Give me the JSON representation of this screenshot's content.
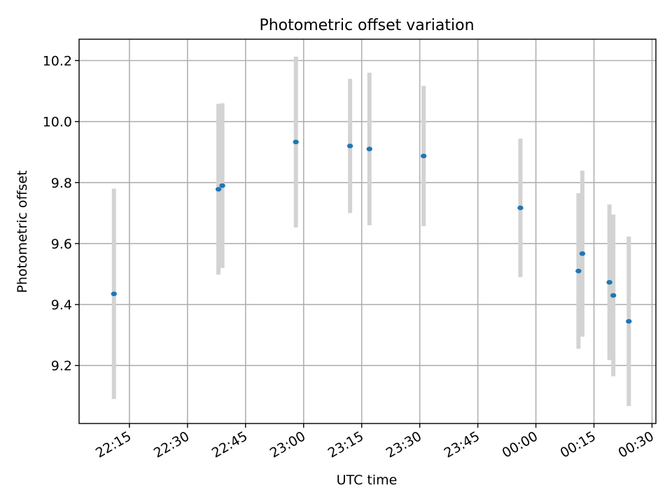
{
  "chart_data": {
    "type": "scatter",
    "title": "Photometric offset variation",
    "xlabel": "UTC time",
    "ylabel": "Photometric offset",
    "x_unit": "UTC time (HH:MM), spanning midnight",
    "xlim": [
      "22:02",
      "00:31"
    ],
    "ylim": [
      9.01,
      10.27
    ],
    "x_ticks": [
      "22:15",
      "22:30",
      "22:45",
      "23:00",
      "23:15",
      "23:30",
      "23:45",
      "00:00",
      "00:15",
      "00:30"
    ],
    "y_ticks": [
      9.2,
      9.4,
      9.6,
      9.8,
      10.0,
      10.2
    ],
    "grid": true,
    "legend": "none",
    "colors": {
      "points": "#1f77b4",
      "error_bars": "#d3d3d3",
      "grid": "#b0b0b0"
    },
    "series": [
      {
        "points": [
          {
            "x": "22:11",
            "y": 9.435,
            "err": 0.345
          },
          {
            "x": "22:38",
            "y": 9.778,
            "err": 0.28
          },
          {
            "x": "22:39",
            "y": 9.79,
            "err": 0.27
          },
          {
            "x": "22:58",
            "y": 9.933,
            "err": 0.28
          },
          {
            "x": "23:12",
            "y": 9.92,
            "err": 0.22
          },
          {
            "x": "23:17",
            "y": 9.91,
            "err": 0.25
          },
          {
            "x": "23:31",
            "y": 9.887,
            "err": 0.23
          },
          {
            "x": "23:56",
            "y": 9.717,
            "err": 0.227
          },
          {
            "x": "00:11",
            "y": 9.51,
            "err": 0.255
          },
          {
            "x": "00:12",
            "y": 9.567,
            "err": 0.272
          },
          {
            "x": "00:19",
            "y": 9.473,
            "err": 0.255
          },
          {
            "x": "00:20",
            "y": 9.43,
            "err": 0.265
          },
          {
            "x": "00:24",
            "y": 9.345,
            "err": 0.278
          }
        ]
      }
    ]
  }
}
